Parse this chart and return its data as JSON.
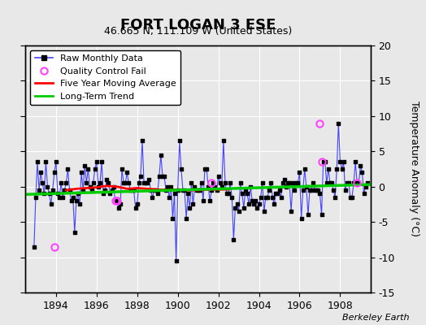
{
  "title": "FORT LOGAN 3 ESE",
  "subtitle": "46.665 N, 111.109 W (United States)",
  "ylabel_right": "Temperature Anomaly (°C)",
  "watermark": "Berkeley Earth",
  "ylim": [
    -15,
    20
  ],
  "xlim": [
    1892.5,
    1909.5
  ],
  "xticks": [
    1894,
    1896,
    1898,
    1900,
    1902,
    1904,
    1906,
    1908
  ],
  "yticks": [
    -15,
    -10,
    -5,
    0,
    5,
    10,
    15,
    20
  ],
  "bg_color": "#e8e8e8",
  "plot_bg_color": "#e8e8e8",
  "raw_line_color": "#4444ff",
  "raw_marker_color": "#000000",
  "moving_avg_color": "#ff0000",
  "trend_color": "#00cc00",
  "qc_fail_color": "#ff44ff",
  "grid_color": "#ffffff",
  "raw_data_x": [
    1892.917,
    1893.0,
    1893.083,
    1893.167,
    1893.25,
    1893.333,
    1893.417,
    1893.5,
    1893.583,
    1893.667,
    1893.75,
    1893.833,
    1893.917,
    1894.0,
    1894.083,
    1894.167,
    1894.25,
    1894.333,
    1894.417,
    1894.5,
    1894.583,
    1894.667,
    1894.75,
    1894.833,
    1894.917,
    1895.0,
    1895.083,
    1895.167,
    1895.25,
    1895.333,
    1895.417,
    1895.5,
    1895.583,
    1895.667,
    1895.75,
    1895.833,
    1895.917,
    1896.0,
    1896.083,
    1896.167,
    1896.25,
    1896.333,
    1896.417,
    1896.5,
    1896.583,
    1896.667,
    1896.75,
    1896.833,
    1896.917,
    1897.0,
    1897.083,
    1897.167,
    1897.25,
    1897.333,
    1897.417,
    1897.5,
    1897.583,
    1897.667,
    1897.75,
    1897.833,
    1897.917,
    1898.0,
    1898.083,
    1898.167,
    1898.25,
    1898.333,
    1898.417,
    1898.5,
    1898.583,
    1898.667,
    1898.75,
    1898.833,
    1898.917,
    1899.0,
    1899.083,
    1899.167,
    1899.25,
    1899.333,
    1899.417,
    1899.5,
    1899.583,
    1899.667,
    1899.75,
    1899.833,
    1899.917,
    1900.0,
    1900.083,
    1900.167,
    1900.25,
    1900.333,
    1900.417,
    1900.5,
    1900.583,
    1900.667,
    1900.75,
    1900.833,
    1900.917,
    1901.0,
    1901.083,
    1901.167,
    1901.25,
    1901.333,
    1901.417,
    1901.5,
    1901.583,
    1901.667,
    1901.75,
    1901.833,
    1901.917,
    1902.0,
    1902.083,
    1902.167,
    1902.25,
    1902.333,
    1902.417,
    1902.5,
    1902.583,
    1902.667,
    1902.75,
    1902.833,
    1902.917,
    1903.0,
    1903.083,
    1903.167,
    1903.25,
    1903.333,
    1903.417,
    1903.5,
    1903.583,
    1903.667,
    1903.75,
    1903.833,
    1903.917,
    1904.0,
    1904.083,
    1904.167,
    1904.25,
    1904.333,
    1904.417,
    1904.5,
    1904.583,
    1904.667,
    1904.75,
    1904.833,
    1904.917,
    1905.0,
    1905.083,
    1905.167,
    1905.25,
    1905.333,
    1905.417,
    1905.5,
    1905.583,
    1905.667,
    1905.75,
    1905.833,
    1905.917,
    1906.0,
    1906.083,
    1906.167,
    1906.25,
    1906.333,
    1906.417,
    1906.5,
    1906.583,
    1906.667,
    1906.75,
    1906.833,
    1906.917,
    1907.0,
    1907.083,
    1907.167,
    1907.25,
    1907.333,
    1907.417,
    1907.5,
    1907.583,
    1907.667,
    1907.75,
    1907.833,
    1907.917,
    1908.0,
    1908.083,
    1908.167,
    1908.25,
    1908.333,
    1908.417,
    1908.5,
    1908.583,
    1908.667,
    1908.75,
    1908.833,
    1908.917,
    1909.0,
    1909.083,
    1909.167,
    1909.25,
    1909.333
  ],
  "raw_data_y": [
    -8.5,
    -1.5,
    3.5,
    -0.5,
    2.0,
    0.5,
    -1.0,
    3.5,
    0.0,
    -1.0,
    -2.5,
    -0.5,
    2.0,
    3.5,
    -1.0,
    -1.5,
    0.5,
    -1.5,
    -0.5,
    0.5,
    2.5,
    -0.5,
    -2.0,
    -1.5,
    -6.5,
    -2.0,
    -1.0,
    -2.5,
    2.0,
    -0.5,
    3.0,
    0.5,
    2.5,
    0.0,
    -0.5,
    0.5,
    2.5,
    3.5,
    0.0,
    0.5,
    3.5,
    -1.0,
    -0.5,
    1.0,
    0.5,
    -1.0,
    -0.5,
    0.0,
    -2.0,
    -2.0,
    -3.0,
    -2.5,
    2.5,
    0.5,
    0.5,
    2.0,
    0.5,
    -0.5,
    -0.5,
    -0.5,
    -3.0,
    -2.5,
    0.5,
    1.5,
    6.5,
    0.5,
    0.5,
    0.5,
    1.0,
    -0.5,
    -1.5,
    -0.5,
    -0.5,
    -1.0,
    1.5,
    4.5,
    1.5,
    1.5,
    -0.5,
    0.0,
    -1.5,
    0.0,
    -4.5,
    -1.0,
    -10.5,
    -0.5,
    6.5,
    2.5,
    -0.5,
    -0.5,
    -4.5,
    -1.0,
    -3.0,
    0.5,
    -2.5,
    0.0,
    -0.5,
    -0.5,
    -0.5,
    0.5,
    -2.0,
    2.5,
    2.5,
    0.0,
    -2.0,
    -0.5,
    0.5,
    0.0,
    -0.5,
    1.5,
    0.5,
    0.0,
    6.5,
    0.5,
    -1.0,
    -1.0,
    0.5,
    -1.5,
    -7.5,
    -3.0,
    -2.5,
    -3.5,
    0.5,
    -1.0,
    -3.0,
    -0.5,
    -1.0,
    -2.5,
    0.0,
    -2.0,
    -2.5,
    -2.0,
    -3.0,
    -2.5,
    -1.5,
    0.5,
    -3.5,
    -1.5,
    -1.5,
    -0.5,
    0.5,
    -1.5,
    -2.5,
    -1.0,
    -1.0,
    -0.5,
    -1.5,
    0.5,
    1.0,
    0.0,
    0.5,
    0.5,
    -3.5,
    0.5,
    -0.5,
    0.5,
    0.5,
    2.0,
    -4.5,
    -0.5,
    2.5,
    0.0,
    -4.0,
    -0.5,
    -0.5,
    0.5,
    -0.5,
    -0.5,
    -0.5,
    -1.0,
    -4.0,
    3.5,
    3.5,
    0.5,
    2.5,
    0.5,
    0.5,
    -0.5,
    -1.5,
    2.5,
    9.0,
    3.5,
    2.5,
    3.5,
    -0.5,
    0.5,
    0.5,
    -1.5,
    -1.5,
    0.5,
    3.5,
    0.5,
    0.5,
    3.0,
    2.0,
    -1.0,
    0.0,
    0.5
  ],
  "qc_fail_x": [
    1893.917,
    1896.917,
    1897.0,
    1901.667,
    1907.0,
    1907.083,
    1908.833
  ],
  "qc_fail_y": [
    -8.5,
    -2.0,
    -2.0,
    0.5,
    9.0,
    3.5,
    0.5
  ],
  "moving_avg_x": [
    1894.5,
    1895.0,
    1895.5,
    1896.0,
    1896.5,
    1897.0,
    1897.5,
    1898.0,
    1898.5,
    1899.0,
    1899.5,
    1900.0,
    1900.5,
    1901.0,
    1901.5,
    1902.0,
    1902.5
  ],
  "moving_avg_y": [
    -0.5,
    -0.3,
    -0.2,
    -0.1,
    0.1,
    0.0,
    -0.3,
    -0.2,
    -0.3,
    -0.4,
    -0.5,
    -0.4,
    -0.5,
    -0.5,
    -0.4,
    -0.4,
    -0.4
  ],
  "trend_x": [
    1892.5,
    1909.5
  ],
  "trend_y": [
    -1.1,
    0.3
  ],
  "title_fontsize": 13,
  "subtitle_fontsize": 9,
  "tick_fontsize": 9,
  "legend_fontsize": 8,
  "watermark_fontsize": 8
}
